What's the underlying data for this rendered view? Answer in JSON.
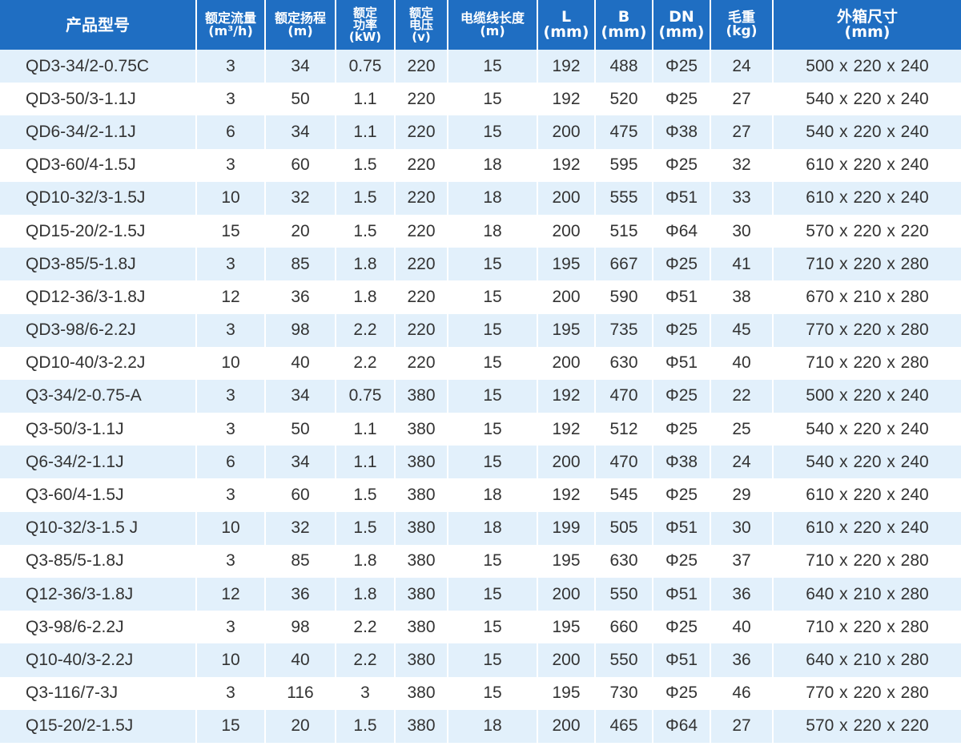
{
  "columns": [
    {
      "line1": "产品型号",
      "line2": "",
      "size": 20
    },
    {
      "line1": "额定流量",
      "line2": "(m³/h)",
      "size": 16
    },
    {
      "line1": "额定扬程",
      "line2": "(m)",
      "size": 16
    },
    {
      "line1": "额定",
      "line2": "功率",
      "line3": "(kW)",
      "size": 15
    },
    {
      "line1": "额定",
      "line2": "电压",
      "line3": "(v)",
      "size": 15
    },
    {
      "line1": "电缆线长度",
      "line2": "(m)",
      "size": 16
    },
    {
      "line1": "L",
      "line2": "(mm)",
      "size": 19
    },
    {
      "line1": "B",
      "line2": "(mm)",
      "size": 19
    },
    {
      "line1": "DN",
      "line2": "(mm)",
      "size": 19
    },
    {
      "line1": "毛重",
      "line2": "(kg)",
      "size": 17
    },
    {
      "line1": "外箱尺寸",
      "line2": "(mm)",
      "size": 19
    }
  ],
  "rows": [
    [
      "QD3-34/2-0.75C",
      "3",
      "34",
      "0.75",
      "220",
      "15",
      "192",
      "488",
      "Φ25",
      "24",
      "500 x 220 x 240"
    ],
    [
      "QD3-50/3-1.1J",
      "3",
      "50",
      "1.1",
      "220",
      "15",
      "192",
      "520",
      "Φ25",
      "27",
      "540 x 220 x 240"
    ],
    [
      "QD6-34/2-1.1J",
      "6",
      "34",
      "1.1",
      "220",
      "15",
      "200",
      "475",
      "Φ38",
      "27",
      "540 x 220 x 240"
    ],
    [
      "QD3-60/4-1.5J",
      "3",
      "60",
      "1.5",
      "220",
      "18",
      "192",
      "595",
      "Φ25",
      "32",
      "610 x 220 x 240"
    ],
    [
      "QD10-32/3-1.5J",
      "10",
      "32",
      "1.5",
      "220",
      "18",
      "200",
      "555",
      "Φ51",
      "33",
      "610 x 220 x 240"
    ],
    [
      "QD15-20/2-1.5J",
      "15",
      "20",
      "1.5",
      "220",
      "18",
      "200",
      "515",
      "Φ64",
      "30",
      "570 x 220 x 220"
    ],
    [
      "QD3-85/5-1.8J",
      "3",
      "85",
      "1.8",
      "220",
      "15",
      "195",
      "667",
      "Φ25",
      "41",
      "710 x 220 x 280"
    ],
    [
      "QD12-36/3-1.8J",
      "12",
      "36",
      "1.8",
      "220",
      "15",
      "200",
      "590",
      "Φ51",
      "38",
      "670 x 210 x 280"
    ],
    [
      "QD3-98/6-2.2J",
      "3",
      "98",
      "2.2",
      "220",
      "15",
      "195",
      "735",
      "Φ25",
      "45",
      "770 x 220 x 280"
    ],
    [
      "QD10-40/3-2.2J",
      "10",
      "40",
      "2.2",
      "220",
      "15",
      "200",
      "630",
      "Φ51",
      "40",
      "710 x 220 x 280"
    ],
    [
      "Q3-34/2-0.75-A",
      "3",
      "34",
      "0.75",
      "380",
      "15",
      "192",
      "470",
      "Φ25",
      "22",
      "500 x 220 x 240"
    ],
    [
      "Q3-50/3-1.1J",
      "3",
      "50",
      "1.1",
      "380",
      "15",
      "192",
      "512",
      "Φ25",
      "25",
      "540 x 220 x 240"
    ],
    [
      "Q6-34/2-1.1J",
      "6",
      "34",
      "1.1",
      "380",
      "15",
      "200",
      "470",
      "Φ38",
      "24",
      "540 x 220 x 240"
    ],
    [
      "Q3-60/4-1.5J",
      "3",
      "60",
      "1.5",
      "380",
      "18",
      "192",
      "545",
      "Φ25",
      "29",
      "610 x 220 x 240"
    ],
    [
      "Q10-32/3-1.5 J",
      "10",
      "32",
      "1.5",
      "380",
      "18",
      "199",
      "505",
      "Φ51",
      "30",
      "610 x 220 x 240"
    ],
    [
      "Q3-85/5-1.8J",
      "3",
      "85",
      "1.8",
      "380",
      "15",
      "195",
      "630",
      "Φ25",
      "37",
      "710 x 220 x 280"
    ],
    [
      "Q12-36/3-1.8J",
      "12",
      "36",
      "1.8",
      "380",
      "15",
      "200",
      "550",
      "Φ51",
      "36",
      "640 x 210 x 280"
    ],
    [
      "Q3-98/6-2.2J",
      "3",
      "98",
      "2.2",
      "380",
      "15",
      "195",
      "660",
      "Φ25",
      "40",
      "710 x 220 x 280"
    ],
    [
      "Q10-40/3-2.2J",
      "10",
      "40",
      "2.2",
      "380",
      "15",
      "200",
      "550",
      "Φ51",
      "36",
      "640 x 210 x 280"
    ],
    [
      "Q3-116/7-3J",
      "3",
      "116",
      "3",
      "380",
      "15",
      "195",
      "730",
      "Φ25",
      "46",
      "770 x 220 x 280"
    ],
    [
      "Q15-20/2-1.5J",
      "15",
      "20",
      "1.5",
      "380",
      "18",
      "200",
      "465",
      "Φ64",
      "27",
      "570 x 220 x 220"
    ]
  ],
  "colors": {
    "header": "#1f6ec2",
    "band": "#e2f0fb",
    "text": "#333333"
  }
}
